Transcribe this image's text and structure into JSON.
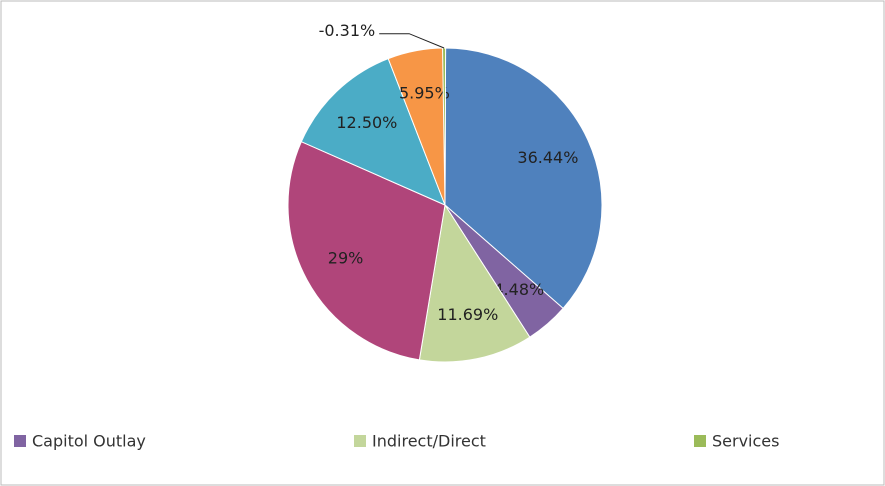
{
  "chart_data": {
    "type": "pie",
    "categories": [
      null,
      "Capitol Outlay",
      "Indirect/Direct",
      null,
      null,
      null,
      "Services"
    ],
    "values": [
      36.44,
      4.48,
      11.69,
      29,
      12.5,
      5.95,
      -0.31
    ],
    "value_labels": [
      "36.44%",
      "4.48%",
      "11.69%",
      "29%",
      "12.50%",
      "5.95%",
      "-0.31%"
    ],
    "colors": [
      "#4f81bd",
      "#8064a2",
      "#c3d69b",
      "#b0457a",
      "#4bacc6",
      "#f79646",
      "#9bbb59"
    ],
    "legend": "bottom"
  }
}
